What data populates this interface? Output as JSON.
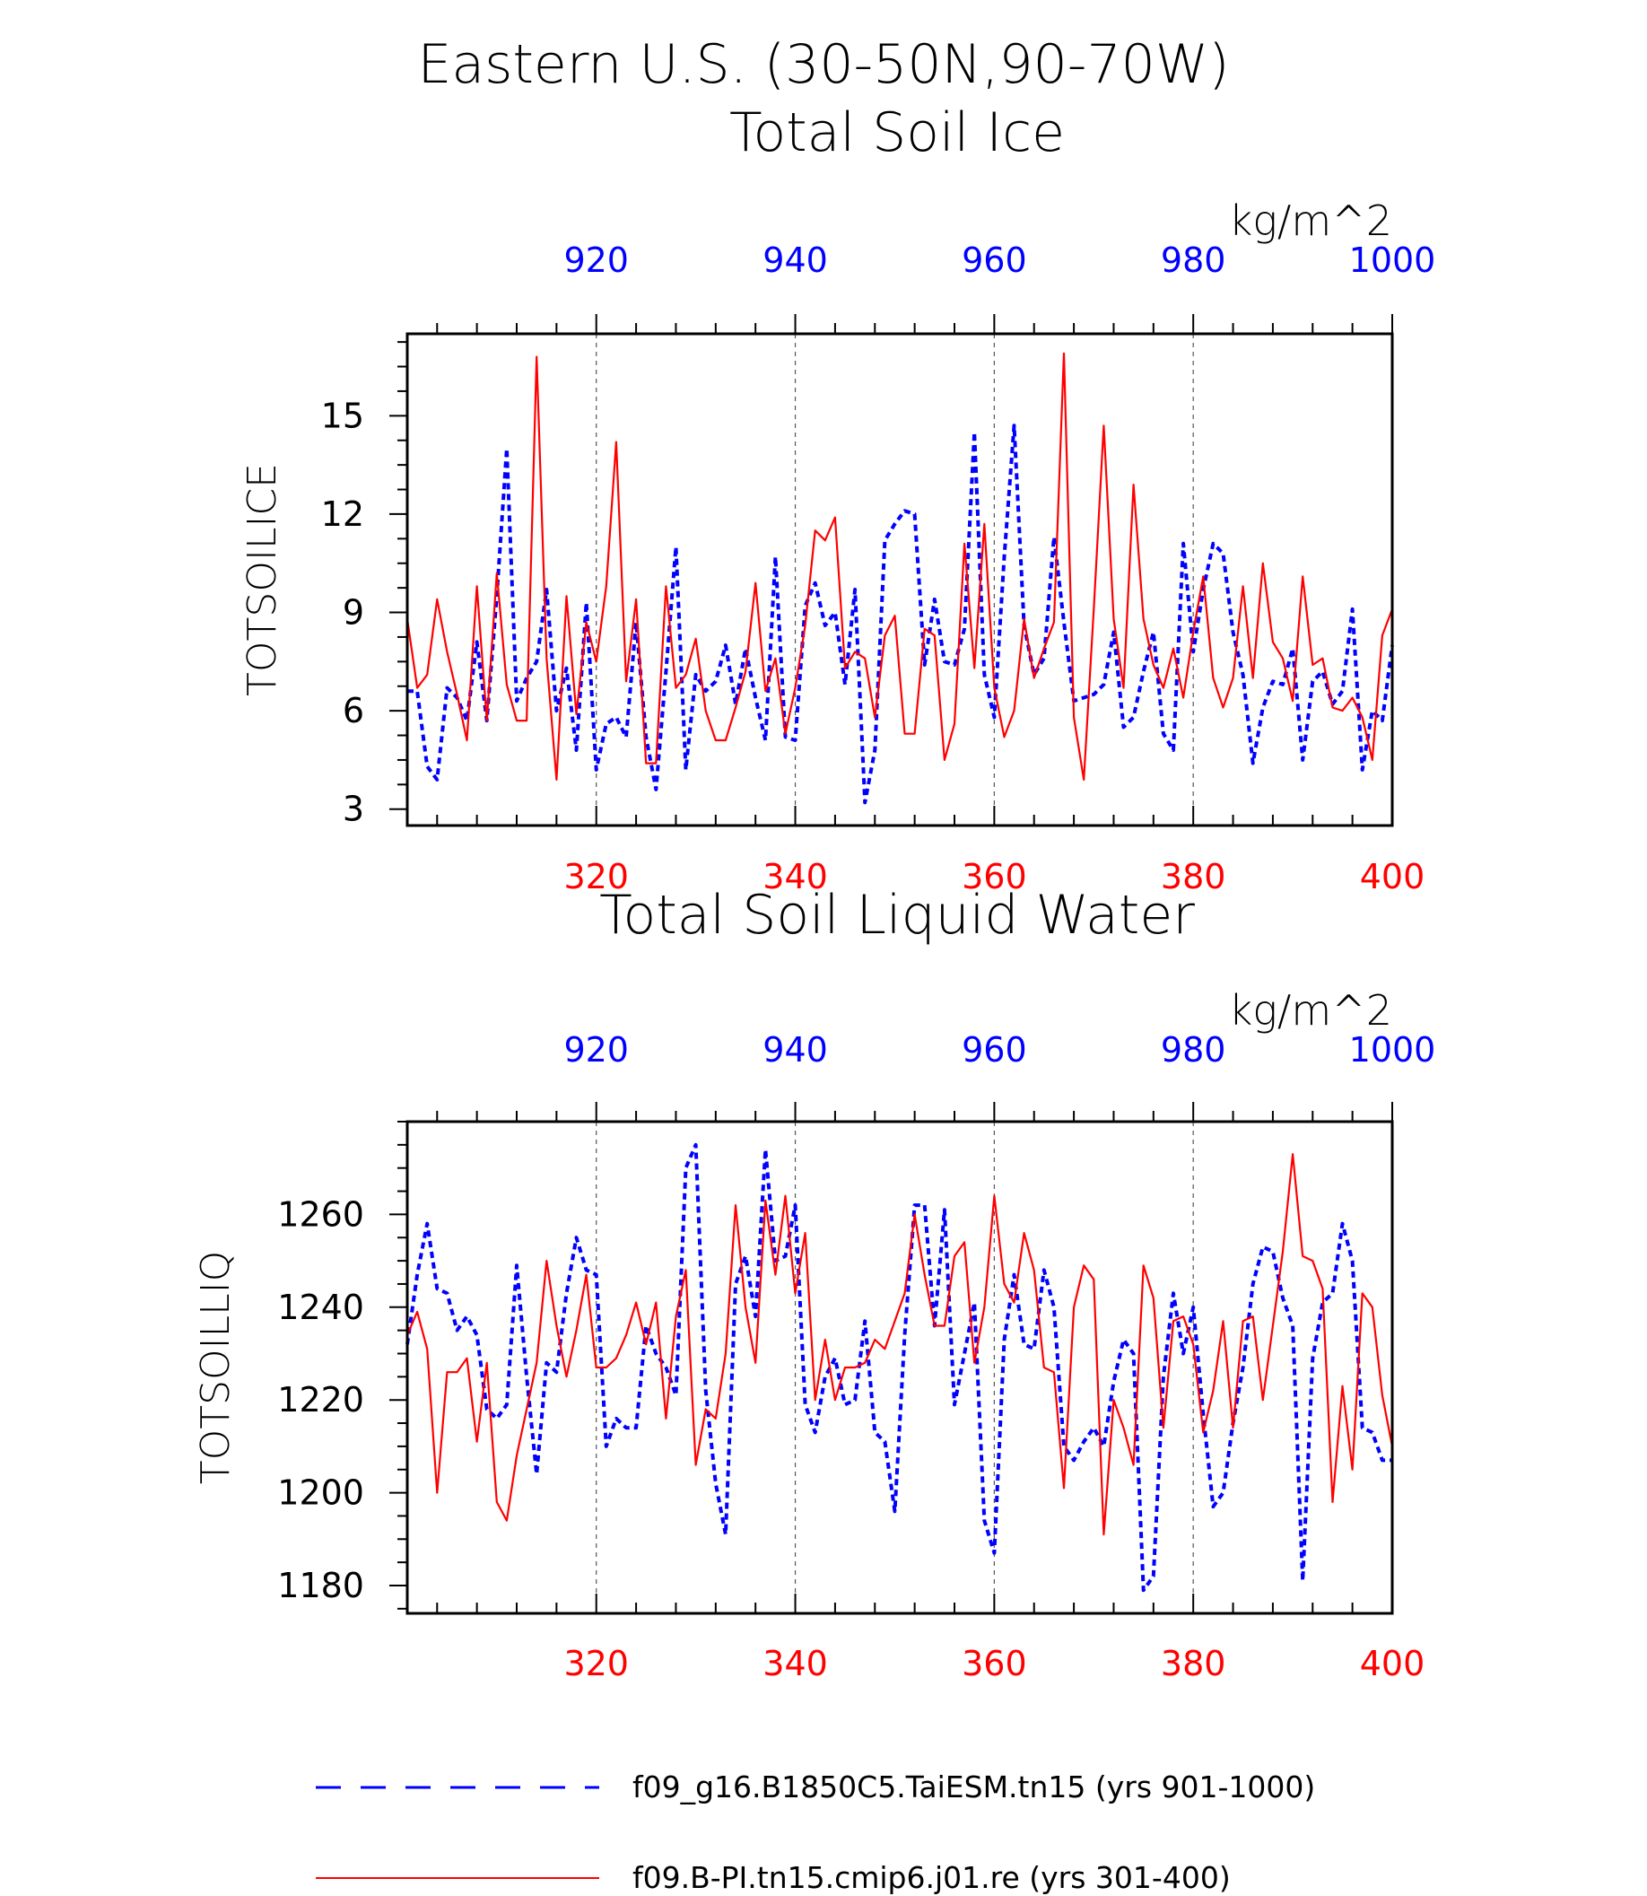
{
  "page": {
    "title": "Eastern U.S. (30-50N,90-70W)"
  },
  "legend": [
    {
      "label": "f09_g16.B1850C5.TaiESM.tn15 (yrs 901-1000)",
      "color": "#0000ff",
      "style": "dashed"
    },
    {
      "label": "f09.B-PI.tn15.cmip6.j01.re (yrs 301-400)",
      "color": "#ff0000",
      "style": "solid"
    }
  ],
  "chart_data": [
    {
      "type": "line",
      "title": "Total Soil Ice",
      "ylabel": "TOTSOILICE",
      "unit_label": "kg/m^2",
      "ylim": [
        2.5,
        17.5
      ],
      "yticks": [
        3,
        6,
        9,
        12,
        15
      ],
      "bottom_axis": {
        "range": [
          301,
          400
        ],
        "ticks": [
          320,
          340,
          360,
          380,
          400
        ],
        "color": "#ff0000"
      },
      "top_axis": {
        "range": [
          901,
          1000
        ],
        "ticks": [
          920,
          940,
          960,
          980,
          1000
        ],
        "color": "#0000ff"
      },
      "grid": "vertical dashed at major ticks",
      "series": [
        {
          "name": "f09_g16.B1850C5.TaiESM.tn15 (yrs 901-1000)",
          "axis": "top",
          "color": "#0000ff",
          "style": "dashed",
          "x_start": 901,
          "values": [
            6.6,
            6.6,
            4.3,
            3.9,
            6.7,
            6.4,
            5.7,
            8.1,
            5.7,
            9.5,
            14.0,
            6.3,
            7.0,
            7.5,
            9.7,
            6.0,
            7.3,
            4.8,
            9.3,
            4.2,
            5.6,
            5.8,
            5.2,
            8.7,
            5.2,
            3.6,
            7.2,
            11.0,
            4.2,
            7.1,
            6.6,
            6.9,
            8.0,
            6.2,
            7.9,
            6.4,
            5.1,
            10.7,
            5.2,
            5.1,
            9.2,
            9.9,
            8.6,
            9.0,
            6.8,
            9.7,
            3.2,
            4.8,
            11.2,
            11.7,
            12.1,
            12.0,
            7.4,
            9.4,
            7.5,
            7.4,
            8.5,
            14.5,
            7.1,
            5.8,
            10.7,
            14.7,
            8.6,
            7.1,
            7.6,
            11.3,
            8.7,
            6.3,
            6.4,
            6.5,
            6.8,
            8.4,
            5.5,
            5.8,
            7.2,
            8.4,
            5.3,
            4.8,
            11.1,
            7.8,
            9.7,
            11.1,
            10.8,
            8.4,
            7.1,
            4.4,
            6.1,
            6.9,
            6.8,
            7.9,
            4.5,
            6.9,
            7.2,
            6.2,
            6.6,
            9.1,
            4.2,
            6.0,
            5.7,
            8.0
          ]
        },
        {
          "name": "f09.B-PI.tn15.cmip6.j01.re (yrs 301-400)",
          "axis": "bottom",
          "color": "#ff0000",
          "style": "solid",
          "x_start": 301,
          "values": [
            8.8,
            6.7,
            7.1,
            9.4,
            7.8,
            6.5,
            5.1,
            9.8,
            5.7,
            10.2,
            6.8,
            5.7,
            5.7,
            16.8,
            7.6,
            3.9,
            9.5,
            5.9,
            8.7,
            7.5,
            9.8,
            14.2,
            6.9,
            9.4,
            4.4,
            4.4,
            9.8,
            6.7,
            7.1,
            8.2,
            6.0,
            5.1,
            5.1,
            6.1,
            7.2,
            9.9,
            6.6,
            7.6,
            5.3,
            6.7,
            8.6,
            11.5,
            11.2,
            11.9,
            7.3,
            7.8,
            7.6,
            5.8,
            8.3,
            8.9,
            5.3,
            5.3,
            8.5,
            8.3,
            4.5,
            5.6,
            11.1,
            7.3,
            11.7,
            6.7,
            5.2,
            6.0,
            8.8,
            7.0,
            7.9,
            8.7,
            16.9,
            5.8,
            3.9,
            9.1,
            14.7,
            8.8,
            6.7,
            12.9,
            8.8,
            7.4,
            6.7,
            7.9,
            6.4,
            8.4,
            10.1,
            7.0,
            6.1,
            7.0,
            9.8,
            7.0,
            10.5,
            8.1,
            7.6,
            6.3,
            10.1,
            7.4,
            7.6,
            6.1,
            6.0,
            6.4,
            5.8,
            4.5,
            8.3,
            9.1
          ]
        }
      ]
    },
    {
      "type": "line",
      "title": "Total Soil Liquid Water",
      "ylabel": "TOTSOILLIQ",
      "unit_label": "kg/m^2",
      "ylim": [
        1174,
        1280
      ],
      "yticks": [
        1180,
        1200,
        1220,
        1240,
        1260
      ],
      "bottom_axis": {
        "range": [
          301,
          400
        ],
        "ticks": [
          320,
          340,
          360,
          380,
          400
        ],
        "color": "#ff0000"
      },
      "top_axis": {
        "range": [
          901,
          1000
        ],
        "ticks": [
          920,
          940,
          960,
          980,
          1000
        ],
        "color": "#0000ff"
      },
      "grid": "vertical dashed at major ticks",
      "series": [
        {
          "name": "f09_g16.B1850C5.TaiESM.tn15 (yrs 901-1000)",
          "axis": "top",
          "color": "#0000ff",
          "style": "dashed",
          "x_start": 901,
          "values": [
            1232,
            1247,
            1258,
            1244,
            1243,
            1235,
            1238,
            1234,
            1218,
            1216,
            1219,
            1249,
            1225,
            1204,
            1228,
            1226,
            1243,
            1255,
            1248,
            1247,
            1210,
            1216,
            1214,
            1214,
            1236,
            1230,
            1227,
            1221,
            1270,
            1275,
            1222,
            1202,
            1191,
            1245,
            1251,
            1238,
            1274,
            1250,
            1251,
            1262,
            1219,
            1213,
            1225,
            1229,
            1219,
            1220,
            1237,
            1213,
            1211,
            1196,
            1234,
            1262,
            1262,
            1236,
            1261,
            1219,
            1230,
            1241,
            1194,
            1187,
            1233,
            1247,
            1232,
            1231,
            1248,
            1240,
            1210,
            1207,
            1211,
            1214,
            1210,
            1224,
            1233,
            1230,
            1179,
            1182,
            1225,
            1243,
            1230,
            1240,
            1217,
            1197,
            1200,
            1215,
            1227,
            1245,
            1253,
            1252,
            1242,
            1236,
            1181,
            1229,
            1241,
            1243,
            1258,
            1250,
            1214,
            1213,
            1207,
            1207
          ]
        },
        {
          "name": "f09.B-PI.tn15.cmip6.j01.re (yrs 301-400)",
          "axis": "bottom",
          "color": "#ff0000",
          "style": "solid",
          "x_start": 301,
          "values": [
            1234,
            1239,
            1231,
            1200,
            1226,
            1226,
            1229,
            1211,
            1228,
            1198,
            1194,
            1208,
            1218,
            1228,
            1250,
            1236,
            1225,
            1235,
            1247,
            1227,
            1227,
            1229,
            1234,
            1241,
            1232,
            1241,
            1216,
            1238,
            1248,
            1206,
            1218,
            1216,
            1230,
            1262,
            1240,
            1228,
            1263,
            1247,
            1264,
            1243,
            1256,
            1220,
            1233,
            1220,
            1227,
            1227,
            1228,
            1233,
            1231,
            1237,
            1243,
            1260,
            1247,
            1236,
            1236,
            1251,
            1254,
            1228,
            1240,
            1264,
            1245,
            1241,
            1256,
            1248,
            1227,
            1226,
            1201,
            1240,
            1249,
            1246,
            1191,
            1220,
            1214,
            1206,
            1249,
            1242,
            1214,
            1237,
            1238,
            1232,
            1213,
            1222,
            1237,
            1214,
            1237,
            1238,
            1220,
            1236,
            1252,
            1273,
            1251,
            1250,
            1244,
            1198,
            1223,
            1205,
            1243,
            1240,
            1221,
            1210
          ]
        }
      ]
    }
  ]
}
